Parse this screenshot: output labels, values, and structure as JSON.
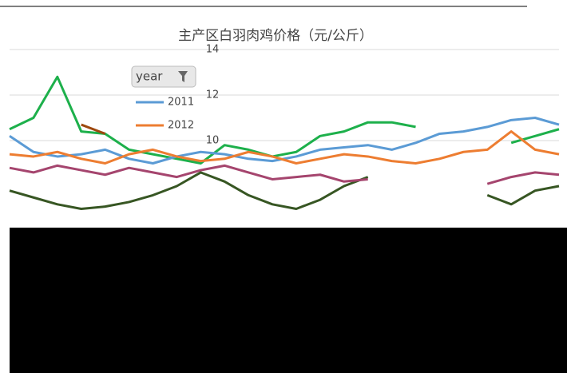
{
  "chart_data": {
    "type": "line",
    "title": "主产区白羽肉鸡价格（元/公斤）",
    "legend_title": "year",
    "categories": [
      null,
      null,
      null,
      null,
      null,
      null,
      null,
      null,
      null,
      null,
      null,
      null,
      null,
      null,
      null,
      null,
      null,
      null,
      null,
      null,
      null,
      null,
      null,
      null
    ],
    "series": [
      {
        "color": "#1db04b",
        "values": [
          10.5,
          11.0,
          12.8,
          10.4,
          10.3,
          9.6,
          9.4,
          9.2,
          9.0,
          9.8,
          9.6,
          9.3,
          9.5,
          10.2,
          10.4,
          10.8,
          10.8,
          10.6,
          null,
          null,
          null,
          9.9,
          10.2,
          10.5
        ]
      },
      {
        "name": "2011",
        "color": "#5b9bd5",
        "values": [
          10.2,
          9.5,
          9.3,
          9.4,
          9.6,
          9.2,
          9.0,
          9.3,
          9.5,
          9.4,
          9.2,
          9.1,
          9.3,
          9.6,
          9.7,
          9.8,
          9.6,
          9.9,
          10.3,
          10.4,
          10.6,
          10.9,
          11.0,
          10.7
        ]
      },
      {
        "name": "2012",
        "color": "#ed7d31",
        "values": [
          9.4,
          9.3,
          9.5,
          9.2,
          9.0,
          9.4,
          9.6,
          9.3,
          9.1,
          9.2,
          9.5,
          9.3,
          9.0,
          9.2,
          9.4,
          9.3,
          9.1,
          9.0,
          9.2,
          9.5,
          9.6,
          10.4,
          9.6,
          9.4
        ]
      },
      {
        "color": "#9e480e",
        "values": [
          null,
          null,
          null,
          10.7,
          10.3,
          null,
          null,
          null,
          null,
          null,
          null,
          null,
          null,
          null,
          null,
          null,
          null,
          null,
          null,
          null,
          null,
          null,
          null,
          null
        ]
      },
      {
        "color": "#375623",
        "values": [
          7.8,
          7.5,
          7.2,
          7.0,
          7.1,
          7.3,
          7.6,
          8.0,
          8.6,
          8.2,
          7.6,
          7.2,
          7.0,
          7.4,
          8.0,
          8.4,
          null,
          null,
          null,
          null,
          7.6,
          7.2,
          7.8,
          8.0
        ]
      },
      {
        "color": "#a5456e",
        "values": [
          8.8,
          8.6,
          8.9,
          8.7,
          8.5,
          8.8,
          8.6,
          8.4,
          8.7,
          8.9,
          8.6,
          8.3,
          8.4,
          8.5,
          8.2,
          8.3,
          null,
          null,
          null,
          null,
          8.1,
          8.4,
          8.6,
          8.5
        ]
      }
    ],
    "ylim": [
      6,
      14
    ],
    "yticks": [
      10,
      12,
      14
    ],
    "grid": true
  }
}
